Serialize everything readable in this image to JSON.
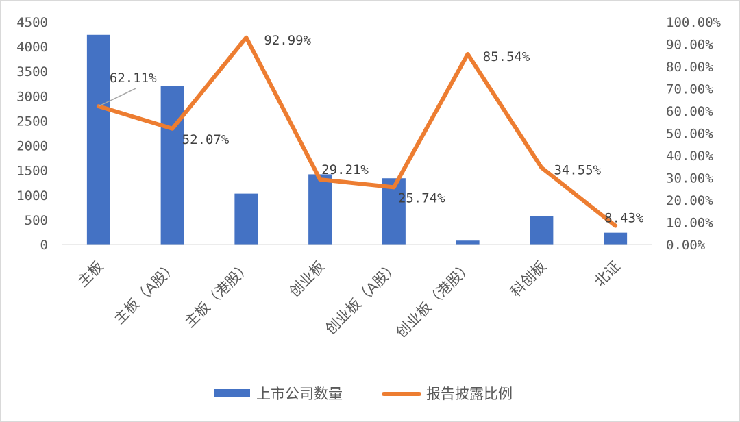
{
  "chart_data": {
    "type": "bar+line",
    "categories": [
      "主板",
      "主板（A股）",
      "主板（港股）",
      "创业板",
      "创业板（A股）",
      "创业板（港股）",
      "科创板",
      "北证"
    ],
    "series": [
      {
        "name": "上市公司数量",
        "type": "bar",
        "axis": "left",
        "color": "#4472C4",
        "values": [
          4240,
          3200,
          1030,
          1420,
          1340,
          80,
          570,
          240
        ]
      },
      {
        "name": "报告披露比例",
        "type": "line",
        "axis": "right",
        "color": "#ED7D31",
        "values": [
          62.11,
          52.07,
          92.99,
          29.21,
          25.74,
          85.54,
          34.55,
          8.43
        ],
        "labels": [
          "62.11%",
          "52.07%",
          "92.99%",
          "29.21%",
          "25.74%",
          "85.54%",
          "34.55%",
          "8.43%"
        ]
      }
    ],
    "y_left": {
      "ylim": [
        0,
        4500
      ],
      "ticks": [
        "0",
        "500",
        "1000",
        "1500",
        "2000",
        "2500",
        "3000",
        "3500",
        "4000",
        "4500"
      ]
    },
    "y_right": {
      "ylim": [
        0,
        100
      ],
      "ticks": [
        "0.00%",
        "10.00%",
        "20.00%",
        "30.00%",
        "40.00%",
        "50.00%",
        "60.00%",
        "70.00%",
        "80.00%",
        "90.00%",
        "100.00%"
      ]
    },
    "grid": false,
    "legend_position": "bottom"
  }
}
